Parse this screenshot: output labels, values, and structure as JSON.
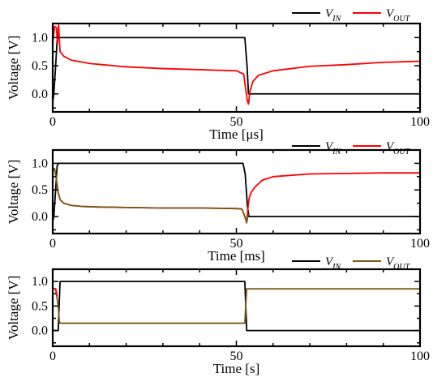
{
  "chart_data": [
    {
      "type": "line",
      "xlabel": "Time [μs]",
      "ylabel": "Voltage [V]",
      "xlim": [
        0,
        100
      ],
      "ylim": [
        -0.32,
        1.25
      ],
      "xticks": [
        "0",
        "50",
        "100"
      ],
      "yticks": [
        "1.0",
        "0.5",
        "0.0"
      ],
      "legend_position": "top-right",
      "series": [
        {
          "name": "V",
          "subscript": "IN",
          "color": "#000000",
          "x": [
            0,
            0.3,
            0.8,
            1.2,
            1.5,
            2,
            52.3,
            52.9,
            53.3,
            100
          ],
          "y": [
            -0.15,
            0.0,
            0.5,
            0.95,
            1.0,
            1.0,
            1.0,
            0.5,
            0.0,
            0.0
          ]
        },
        {
          "name": "V",
          "subscript": "OUT",
          "color": "#ff0000",
          "x": [
            0,
            0.5,
            1.0,
            1.3,
            1.6,
            2.0,
            3,
            5,
            10,
            20,
            30,
            40,
            45,
            50,
            52,
            52.5,
            53,
            53.3,
            53.7,
            54.5,
            56,
            60,
            70,
            80,
            90,
            100
          ],
          "y": [
            0.9,
            1.2,
            1.18,
            0.9,
            1.22,
            0.75,
            0.67,
            0.6,
            0.54,
            0.48,
            0.45,
            0.43,
            0.42,
            0.41,
            0.35,
            0.1,
            -0.13,
            -0.18,
            0.05,
            0.22,
            0.33,
            0.41,
            0.49,
            0.52,
            0.56,
            0.58
          ]
        }
      ]
    },
    {
      "type": "line",
      "xlabel": "Time [ms]",
      "ylabel": "Voltage [V]",
      "xlim": [
        0,
        100
      ],
      "ylim": [
        -0.32,
        1.25
      ],
      "xticks": [
        "0",
        "50",
        "100"
      ],
      "yticks": [
        "1.0",
        "0.5",
        "0.0"
      ],
      "legend_position": "top-right",
      "series": [
        {
          "name": "V",
          "subscript": "IN",
          "color": "#000000",
          "x": [
            0,
            0.3,
            0.8,
            1.2,
            1.6,
            2,
            51.8,
            52.4,
            53,
            53.4,
            100
          ],
          "y": [
            -0.1,
            0.0,
            0.5,
            0.95,
            1.0,
            1.0,
            1.0,
            0.8,
            0.2,
            0.0,
            0.0
          ]
        },
        {
          "name": "V",
          "subscript": "OUT",
          "color": "#ff0000",
          "x": [
            0,
            0.5,
            1.0,
            1.5,
            2.0,
            3,
            5,
            8,
            12,
            20,
            30,
            40,
            50,
            51.5,
            52.3,
            52.8,
            53.2,
            53.5,
            54,
            55,
            57,
            60,
            70,
            80,
            90,
            100
          ],
          "y": [
            0.85,
            0.9,
            0.7,
            0.45,
            0.32,
            0.25,
            0.21,
            0.19,
            0.18,
            0.17,
            0.16,
            0.16,
            0.15,
            0.14,
            0.0,
            -0.1,
            0.2,
            0.35,
            0.45,
            0.55,
            0.68,
            0.75,
            0.8,
            0.81,
            0.82,
            0.82
          ]
        },
        {
          "name": "",
          "subscript": "",
          "color": "#7a5a1a",
          "x": [
            0,
            0.5,
            1.0,
            1.5,
            2.0,
            3,
            5,
            8,
            12,
            20,
            30,
            40,
            50,
            51.5,
            52.3,
            52.8,
            53.2
          ],
          "y": [
            0.85,
            0.9,
            0.7,
            0.45,
            0.32,
            0.25,
            0.21,
            0.19,
            0.18,
            0.17,
            0.16,
            0.16,
            0.15,
            0.14,
            0.0,
            -0.12,
            0.05
          ]
        }
      ]
    },
    {
      "type": "line",
      "xlabel": "Time [s]",
      "ylabel": "Voltage [V]",
      "xlim": [
        0,
        100
      ],
      "ylim": [
        -0.32,
        1.25
      ],
      "xticks": [
        "0",
        "50",
        "100"
      ],
      "yticks": [
        "1.0",
        "0.5",
        "0.0"
      ],
      "legend_position": "top-right",
      "series": [
        {
          "name": "V",
          "subscript": "IN",
          "color": "#000000",
          "x": [
            0,
            1.5,
            2,
            52.3,
            52.8,
            100
          ],
          "y": [
            0.0,
            0.0,
            1.0,
            1.0,
            0.0,
            0.0
          ]
        },
        {
          "name": "V",
          "subscript": "OUT",
          "color": "#7a5a1a",
          "x": [
            0,
            0.8,
            1.5,
            1.8,
            2,
            52.3,
            52.8,
            100
          ],
          "y": [
            0.85,
            0.85,
            0.5,
            0.2,
            0.15,
            0.15,
            0.85,
            0.85
          ]
        },
        {
          "name": "",
          "subscript": "",
          "color": "#ff0000",
          "x": [
            0,
            0.8,
            1.2
          ],
          "y": [
            0.85,
            0.85,
            0.7
          ]
        }
      ]
    }
  ]
}
